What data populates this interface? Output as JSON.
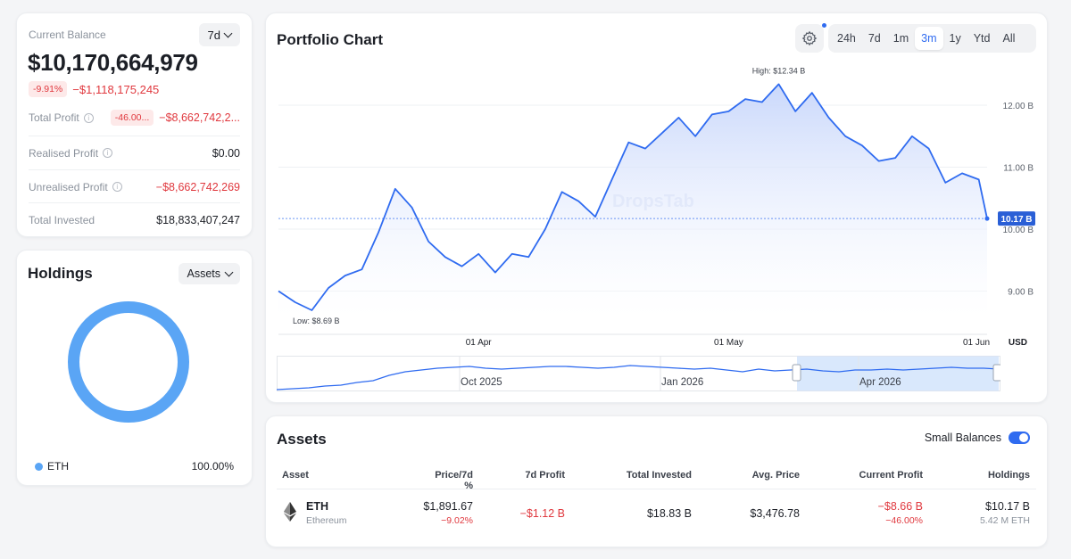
{
  "balance": {
    "label": "Current Balance",
    "period": "7d",
    "value": "$10,170,664,979",
    "change_pct": "-9.91%",
    "change_abs": "−$1,118,175,245",
    "total_profit_label": "Total Profit",
    "total_profit_pct": "-46.00...",
    "total_profit_value": "−$8,662,742,2...",
    "realised_label": "Realised Profit",
    "realised_value": "$0.00",
    "unrealised_label": "Unrealised Profit",
    "unrealised_value": "−$8,662,742,269",
    "invested_label": "Total Invested",
    "invested_value": "$18,833,407,247"
  },
  "holdings": {
    "title": "Holdings",
    "filter": "Assets",
    "legend_asset": "ETH",
    "legend_pct": "100.00%",
    "ring_color": "#5aa5f5"
  },
  "chart": {
    "title": "Portfolio Chart",
    "timeframes": [
      "24h",
      "7d",
      "1m",
      "3m",
      "1y",
      "Ytd",
      "All"
    ],
    "active_timeframe": "3m",
    "watermark": "DropsTab",
    "currency": "USD",
    "high_label": "High: $12.34 B",
    "low_label": "Low: $8.69 B",
    "current_label": "10.17 B",
    "nav_labels": [
      "Oct 2025",
      "Jan 2026",
      "Apr 2026"
    ],
    "line_color": "#2f6bf0"
  },
  "chart_data": {
    "type": "area",
    "title": "Portfolio Chart",
    "x_ticks": [
      "01 Apr",
      "01 May",
      "01 Jun"
    ],
    "y_ticks": [
      9.0,
      10.0,
      11.0,
      12.0
    ],
    "y_tick_labels": [
      "9.00 B",
      "10.00 B",
      "11.00 B",
      "12.00 B"
    ],
    "ylim": [
      8.4,
      12.9
    ],
    "xlim": [
      "2026-03-08",
      "2026-06-01"
    ],
    "unit": "USD (billions)",
    "high": 12.34,
    "low": 8.69,
    "current": 10.17,
    "x": [
      "2026-03-08",
      "2026-03-10",
      "2026-03-12",
      "2026-03-14",
      "2026-03-16",
      "2026-03-18",
      "2026-03-20",
      "2026-03-22",
      "2026-03-24",
      "2026-03-26",
      "2026-03-28",
      "2026-03-30",
      "2026-04-01",
      "2026-04-03",
      "2026-04-05",
      "2026-04-07",
      "2026-04-09",
      "2026-04-11",
      "2026-04-13",
      "2026-04-15",
      "2026-04-17",
      "2026-04-19",
      "2026-04-21",
      "2026-04-23",
      "2026-04-25",
      "2026-04-27",
      "2026-04-29",
      "2026-05-01",
      "2026-05-03",
      "2026-05-05",
      "2026-05-07",
      "2026-05-09",
      "2026-05-11",
      "2026-05-13",
      "2026-05-15",
      "2026-05-17",
      "2026-05-19",
      "2026-05-21",
      "2026-05-23",
      "2026-05-25",
      "2026-05-27",
      "2026-05-29",
      "2026-05-31",
      "2026-06-01"
    ],
    "values": [
      9.0,
      8.82,
      8.69,
      9.05,
      9.25,
      9.35,
      9.95,
      10.65,
      10.35,
      9.8,
      9.55,
      9.4,
      9.6,
      9.3,
      9.6,
      9.55,
      10.0,
      10.6,
      10.45,
      10.2,
      10.8,
      11.4,
      11.3,
      11.55,
      11.8,
      11.5,
      11.85,
      11.9,
      12.1,
      12.05,
      12.34,
      11.9,
      12.2,
      11.8,
      11.5,
      11.35,
      11.1,
      11.15,
      11.5,
      11.3,
      10.75,
      10.9,
      10.8,
      10.17
    ]
  },
  "assets": {
    "title": "Assets",
    "small_balances_label": "Small Balances",
    "headers": [
      "Asset",
      "Price/7d %",
      "7d Profit",
      "Total Invested",
      "Avg. Price",
      "Current Profit",
      "Holdings"
    ],
    "rows": [
      {
        "symbol": "ETH",
        "name": "Ethereum",
        "price": "$1,891.67",
        "price_change": "−9.02%",
        "profit_7d": "−$1.12 B",
        "total_invested": "$18.83 B",
        "avg_price": "$3,476.78",
        "current_profit": "−$8.66 B",
        "current_profit_pct": "−46.00%",
        "holdings_value": "$10.17 B",
        "holdings_amount": "5.42 M ETH"
      }
    ]
  }
}
